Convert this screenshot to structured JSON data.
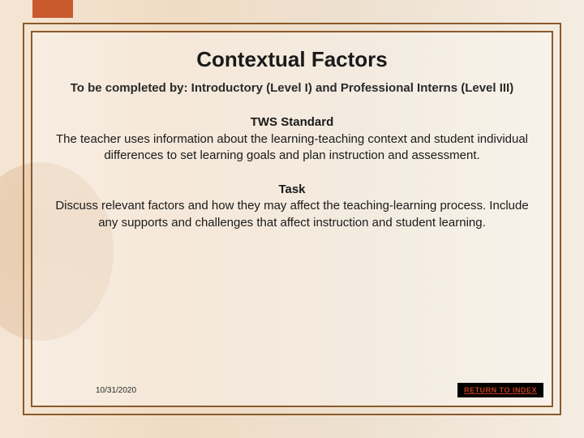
{
  "slide": {
    "title": "Contextual Factors",
    "subtitle": "To be completed by:  Introductory (Level I) and Professional Interns (Level III)",
    "section1": {
      "heading": "TWS Standard",
      "body": "The teacher uses information about the learning-teaching context and student individual differences to set learning goals and plan instruction and assessment."
    },
    "section2": {
      "heading": "Task",
      "body": "Discuss relevant factors and how they may affect the teaching-learning process.  Include any supports and challenges that affect instruction and student learning."
    },
    "date": "10/31/2020",
    "return_label": "RETURN TO INDEX"
  },
  "colors": {
    "frame_border": "#8b5a2b",
    "accent": "#c85a2e",
    "link_bg": "#000000",
    "link_text": "#c04020",
    "text": "#1a1a1a"
  }
}
